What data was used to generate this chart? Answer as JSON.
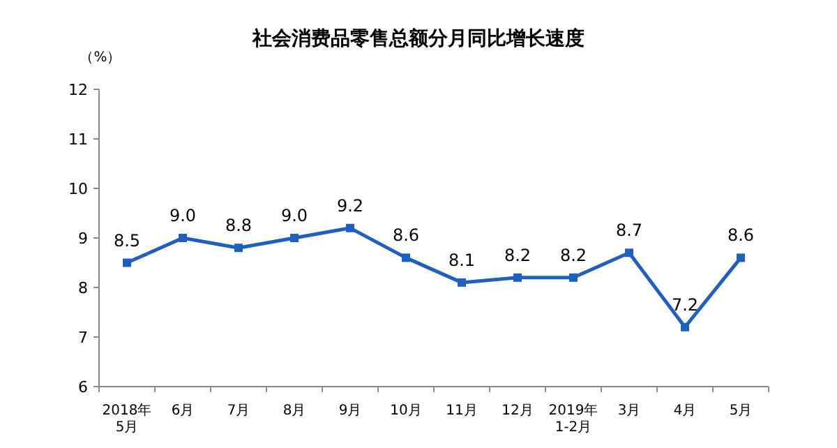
{
  "chart_data": {
    "type": "line",
    "title": "社会消费品零售总额分月同比增长速度",
    "ylabel": "（%）",
    "categories": [
      "2018年\n5月",
      "6月",
      "7月",
      "8月",
      "9月",
      "10月",
      "11月",
      "12月",
      "2019年\n1-2月",
      "3月",
      "4月",
      "5月"
    ],
    "series": [
      {
        "color": "#1f5fc0",
        "values": [
          8.5,
          9.0,
          8.8,
          9.0,
          9.2,
          8.6,
          8.1,
          8.2,
          8.2,
          8.7,
          7.2,
          8.6
        ],
        "value_labels": [
          "8.5",
          "9.0",
          "8.8",
          "9.0",
          "9.2",
          "8.6",
          "8.1",
          "8.2",
          "8.2",
          "8.7",
          "7.2",
          "8.6"
        ]
      }
    ],
    "ylim": [
      6,
      12
    ],
    "yticks": [
      6,
      7,
      8,
      9,
      10,
      11,
      12
    ],
    "marker": "square",
    "line_style": "solid",
    "grid": false
  }
}
